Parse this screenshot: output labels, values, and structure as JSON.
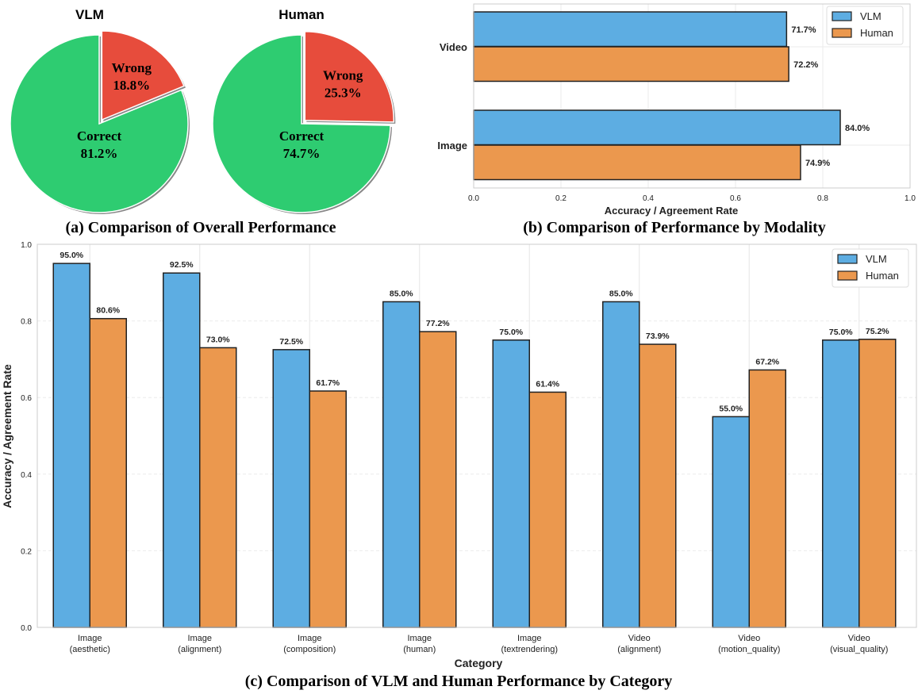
{
  "colors": {
    "vlm": "#5dade2",
    "human": "#eb984e",
    "correct": "#2ecc71",
    "wrong": "#e74c3c"
  },
  "chart_data": [
    {
      "type": "pie",
      "caption": "(a) Comparison of Overall Performance",
      "pies": [
        {
          "title": "VLM",
          "slices": [
            {
              "label": "Wrong",
              "value": 18.8,
              "text": "18.8%"
            },
            {
              "label": "Correct",
              "value": 81.2,
              "text": "81.2%"
            }
          ]
        },
        {
          "title": "Human",
          "slices": [
            {
              "label": "Wrong",
              "value": 25.3,
              "text": "25.3%"
            },
            {
              "label": "Correct",
              "value": 74.7,
              "text": "74.7%"
            }
          ]
        }
      ]
    },
    {
      "type": "bar",
      "orientation": "horizontal",
      "caption": "(b) Comparison of Performance by Modality",
      "categories": [
        "Video",
        "Image"
      ],
      "series": [
        {
          "name": "VLM",
          "values": [
            0.717,
            0.84
          ],
          "labels": [
            "71.7%",
            "84.0%"
          ]
        },
        {
          "name": "Human",
          "values": [
            0.722,
            0.749
          ],
          "labels": [
            "72.2%",
            "74.9%"
          ]
        }
      ],
      "xlabel": "Accuracy / Agreement Rate",
      "xlim": [
        0,
        1.0
      ],
      "xticks": [
        "0.0",
        "0.2",
        "0.4",
        "0.6",
        "0.8",
        "1.0"
      ],
      "grid": true,
      "legend": "top-right"
    },
    {
      "type": "bar",
      "caption": "(c) Comparison of VLM and Human Performance by Category",
      "categories": [
        [
          "Image",
          "(aesthetic)"
        ],
        [
          "Image",
          "(alignment)"
        ],
        [
          "Image",
          "(composition)"
        ],
        [
          "Image",
          "(human)"
        ],
        [
          "Image",
          "(textrendering)"
        ],
        [
          "Video",
          "(alignment)"
        ],
        [
          "Video",
          "(motion_quality)"
        ],
        [
          "Video",
          "(visual_quality)"
        ]
      ],
      "series": [
        {
          "name": "VLM",
          "values": [
            0.95,
            0.925,
            0.725,
            0.85,
            0.75,
            0.85,
            0.55,
            0.75
          ],
          "labels": [
            "95.0%",
            "92.5%",
            "72.5%",
            "85.0%",
            "75.0%",
            "85.0%",
            "55.0%",
            "75.0%"
          ]
        },
        {
          "name": "Human",
          "values": [
            0.806,
            0.73,
            0.617,
            0.772,
            0.614,
            0.739,
            0.672,
            0.752
          ],
          "labels": [
            "80.6%",
            "73.0%",
            "61.7%",
            "77.2%",
            "61.4%",
            "73.9%",
            "67.2%",
            "75.2%"
          ]
        }
      ],
      "xlabel": "Category",
      "ylabel": "Accuracy / Agreement Rate",
      "ylim": [
        0,
        1.0
      ],
      "yticks": [
        "0.0",
        "0.2",
        "0.4",
        "0.6",
        "0.8",
        "1.0"
      ],
      "grid": true,
      "legend": "top-right"
    }
  ]
}
